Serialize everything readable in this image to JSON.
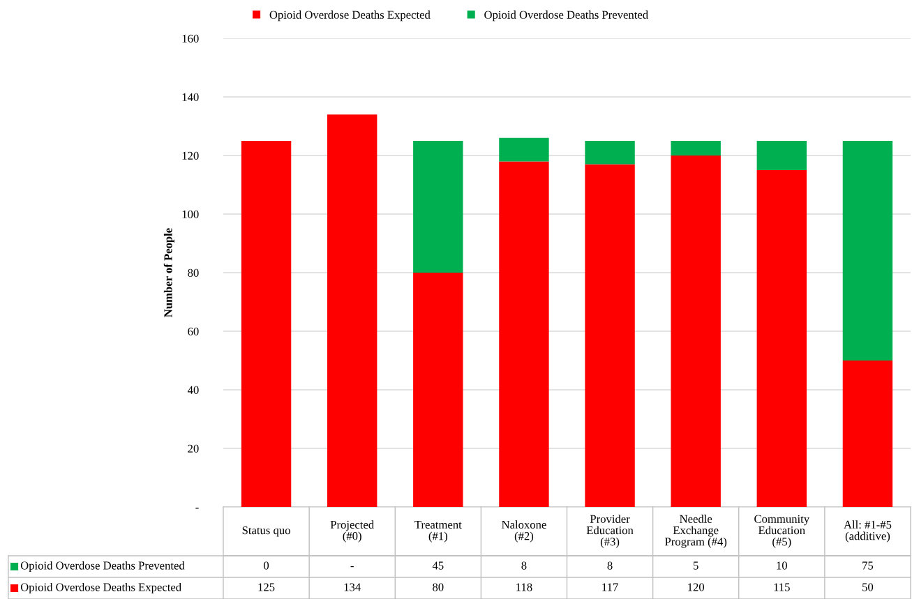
{
  "chart_data": {
    "type": "bar",
    "stacked": true,
    "ylabel": "Number of People",
    "categories": [
      "Status quo",
      "Projected\n(#0)",
      "Treatment\n(#1)",
      "Naloxone\n(#2)",
      "Provider\nEducation\n(#3)",
      "Needle\nExchange\nProgram (#4)",
      "Community\nEducation\n(#5)",
      "All: #1-#5\n(additive)"
    ],
    "series": [
      {
        "name": "Opioid Overdose Deaths Expected",
        "color": "#ff0000",
        "values": [
          125,
          134,
          80,
          118,
          117,
          120,
          115,
          50
        ],
        "value_labels": [
          "125",
          "134",
          "80",
          "118",
          "117",
          "120",
          "115",
          "50"
        ]
      },
      {
        "name": "Opioid Overdose Deaths Prevented",
        "color": "#00b050",
        "values": [
          0,
          null,
          45,
          8,
          8,
          5,
          10,
          75
        ],
        "value_labels": [
          "0",
          "-",
          "45",
          "8",
          "8",
          "5",
          "10",
          "75"
        ]
      }
    ],
    "ylim": [
      0,
      160
    ],
    "yticks": [
      {
        "value": 0,
        "label": "-"
      },
      20,
      40,
      60,
      80,
      100,
      120,
      140,
      160
    ],
    "grid": "y",
    "legend": "top"
  }
}
